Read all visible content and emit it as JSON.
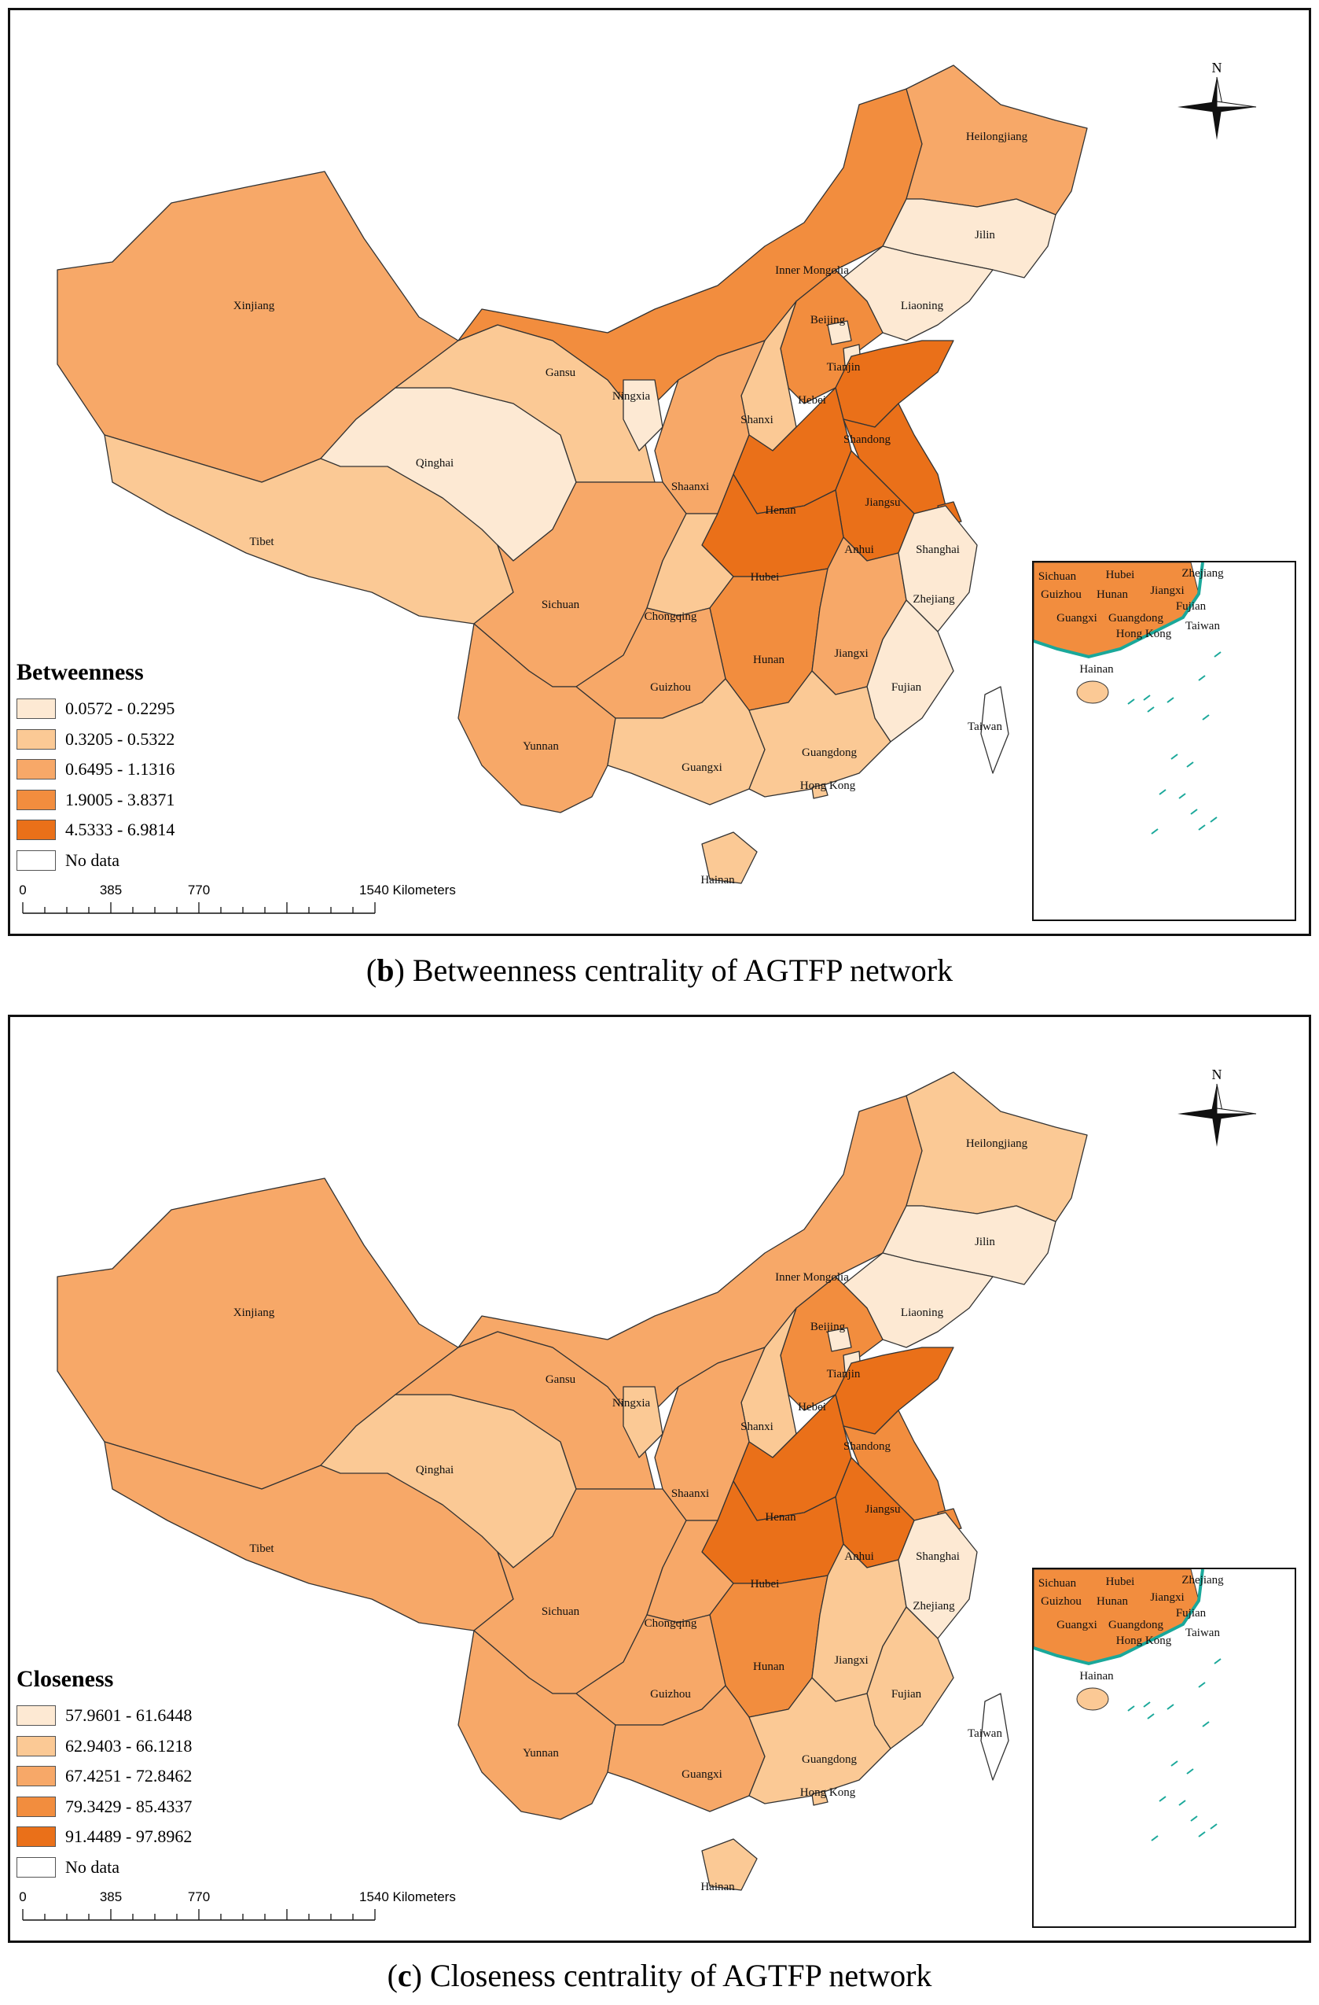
{
  "panels": [
    {
      "caption_letter": "b",
      "caption_text": " Betweenness centrality of AGTFP network",
      "legend_title": "Betweenness",
      "classes": [
        "0.0572 - 0.2295",
        "0.3205 - 0.5322",
        "0.6495 - 1.1316",
        "1.9005 - 3.8371",
        "4.5333 - 6.9814"
      ],
      "no_data": "No data",
      "province_class": {
        "Xinjiang": 2,
        "Tibet": 1,
        "Qinghai": 0,
        "Gansu": 1,
        "Inner Mongolia": 3,
        "Heilongjiang": 2,
        "Jilin": 0,
        "Liaoning": 0,
        "Beijing": 0,
        "Tianjin": 0,
        "Hebei": 3,
        "Shanxi": 1,
        "Ningxia": 0,
        "Shaanxi": 2,
        "Shandong": 4,
        "Henan": 4,
        "Jiangsu": 4,
        "Anhui": 4,
        "Shanghai": 4,
        "Hubei": 4,
        "Sichuan": 2,
        "Chongqing": 1,
        "Hunan": 3,
        "Jiangxi": 2,
        "Zhejiang": 0,
        "Guizhou": 2,
        "Fujian": 0,
        "Yunnan": 2,
        "Guangxi": 1,
        "Guangdong": 1,
        "Hong Kong": 1,
        "Hainan": 1,
        "Taiwan": -1
      }
    },
    {
      "caption_letter": "c",
      "caption_text": " Closeness centrality of AGTFP network",
      "legend_title": "Closeness",
      "classes": [
        "57.9601 - 61.6448",
        "62.9403 - 66.1218",
        "67.4251 - 72.8462",
        "79.3429 - 85.4337",
        "91.4489 - 97.8962"
      ],
      "no_data": "No data",
      "province_class": {
        "Xinjiang": 2,
        "Tibet": 2,
        "Qinghai": 1,
        "Gansu": 2,
        "Inner Mongolia": 2,
        "Heilongjiang": 1,
        "Jilin": 0,
        "Liaoning": 0,
        "Beijing": 0,
        "Tianjin": 0,
        "Hebei": 3,
        "Shanxi": 1,
        "Ningxia": 1,
        "Shaanxi": 2,
        "Shandong": 4,
        "Henan": 4,
        "Jiangsu": 3,
        "Anhui": 4,
        "Shanghai": 3,
        "Hubei": 4,
        "Sichuan": 2,
        "Chongqing": 2,
        "Hunan": 3,
        "Jiangxi": 1,
        "Zhejiang": 0,
        "Guizhou": 2,
        "Fujian": 1,
        "Yunnan": 2,
        "Guangxi": 2,
        "Guangdong": 1,
        "Hong Kong": 1,
        "Hainan": 1,
        "Taiwan": -1
      }
    }
  ],
  "colors": [
    "#fde9d3",
    "#fbc995",
    "#f7a868",
    "#f28d3e",
    "#ea7019"
  ],
  "no_data_color": "#ffffff",
  "scale": {
    "ticks": [
      "0",
      "385",
      "770",
      "1540 Kilometers"
    ]
  },
  "north_label": "N",
  "inset_labels": [
    "Sichuan",
    "Hubei",
    "Zhejiang",
    "Guizhou",
    "Hunan",
    "Jiangxi",
    "Fujian",
    "Guangxi",
    "Guangdong",
    "Hong Kong",
    "Taiwan",
    "Hainan"
  ]
}
